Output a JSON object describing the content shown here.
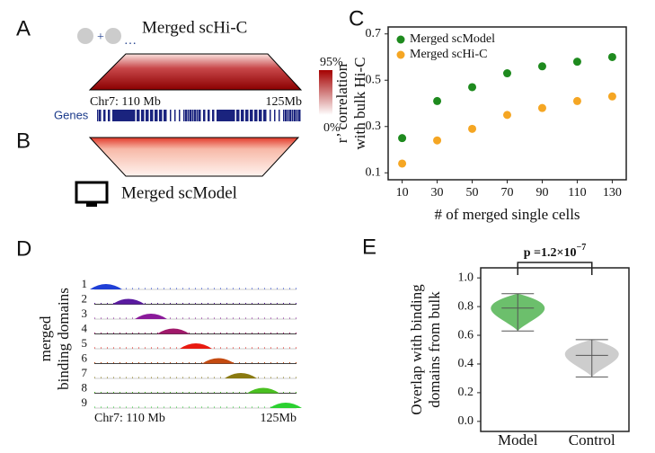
{
  "panel_labels": [
    "A",
    "B",
    "C",
    "D",
    "E"
  ],
  "panel_a": {
    "title": "Merged scHi-C",
    "plus": "+",
    "ellipsis": "…",
    "region_start": "Chr7: 110 Mb",
    "region_end": "125Mb",
    "genes": "Genes",
    "colorbar_max": "95%",
    "colorbar_min": "0%"
  },
  "panel_b": {
    "title": "Merged scModel"
  },
  "panel_d": {
    "y_label": [
      "merged",
      "binding domains"
    ],
    "tracks": [
      "1",
      "2",
      "3",
      "4",
      "5",
      "6",
      "7",
      "8",
      "9"
    ],
    "region_start": "Chr7: 110 Mb",
    "region_end": "125Mb"
  },
  "chart_data": [
    {
      "type": "scatter",
      "x_label": "# of merged single cells",
      "y_label": [
        "r’ correlation",
        "with bulk Hi-C"
      ],
      "x": [
        10,
        30,
        50,
        70,
        90,
        110,
        130
      ],
      "series": [
        {
          "name": "Merged scModel",
          "color": "#1e8a1e",
          "values": [
            0.25,
            0.41,
            0.47,
            0.53,
            0.56,
            0.58,
            0.6
          ]
        },
        {
          "name": "Merged scHi-C",
          "color": "#f5a623",
          "values": [
            0.14,
            0.24,
            0.29,
            0.35,
            0.38,
            0.41,
            0.43
          ]
        }
      ],
      "xlim": [
        2,
        138
      ],
      "xticks": [
        10,
        30,
        50,
        70,
        90,
        110,
        130
      ],
      "ylim": [
        0.07,
        0.73
      ],
      "yticks": [
        0.1,
        0.3,
        0.5,
        0.7
      ],
      "legend": "upper left"
    },
    {
      "type": "violin",
      "y_label": [
        "Overlap with binding",
        "domains from bulk"
      ],
      "categories": [
        "Model",
        "Control"
      ],
      "series": [
        {
          "color": "#5cb85c",
          "min": 0.63,
          "median": 0.79,
          "max": 0.89
        },
        {
          "color": "#c8c8c8",
          "min": 0.31,
          "median": 0.46,
          "max": 0.57
        }
      ],
      "ylim": [
        -0.07,
        1.07
      ],
      "yticks": [
        {
          "value": 0,
          "label": "0.0"
        },
        0.2,
        0.4,
        0.6,
        0.8,
        {
          "value": 1,
          "label": "1.0"
        }
      ],
      "annotation": {
        "base": "p =1.2×10",
        "exponent": "−7"
      }
    }
  ]
}
